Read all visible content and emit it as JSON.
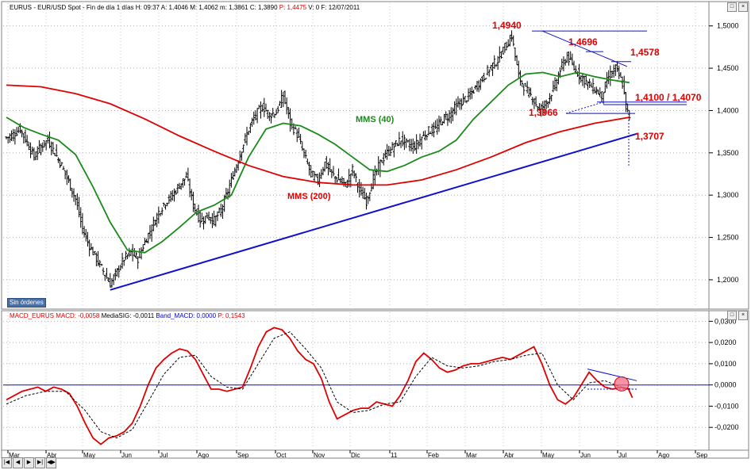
{
  "header": {
    "main": {
      "symbol": "EURUS",
      "desc": "EUR/USD Spot - Fin de día 1 días H: 09:37 A: 1,4046 M: 1,4062 m: 1,3861 C: 1,3890",
      "p": "P: 1,4475",
      "rest": "V: 0 F: 12/07/2011"
    },
    "macd": {
      "name": "MACD_EURUS",
      "macd": "MACD: -0,0058",
      "sig": "MediaSIG: -0,0011",
      "band": "Band_MACD: 0,0000",
      "p": "P: 0,1543"
    }
  },
  "no_orders": "Sin órdenes",
  "nav_buttons": [
    "|◀",
    "◀",
    "▶",
    "▶|",
    "◀▶"
  ],
  "colors": {
    "red": "#e00000",
    "green": "#1a8a1a",
    "blue": "#1010cc",
    "candle": "#000000"
  },
  "chart_data": [
    {
      "type": "candlestick",
      "ylim": [
        1.17,
        1.51
      ],
      "y_ticks": [
        "1,2000",
        "1,2500",
        "1,3000",
        "1,3500",
        "1,4000",
        "1,4500",
        "1,5000"
      ],
      "x_labels": [
        "Mar",
        "Abr",
        "May",
        "Jun",
        "Jul",
        "Ago",
        "Sep",
        "Oct",
        "Nov",
        "Dic",
        "11",
        "Feb",
        "Mar",
        "Abr",
        "May",
        "Jun",
        "Jul",
        "Ago",
        "Sep"
      ],
      "close_series": [
        [
          0,
          1.368
        ],
        [
          4,
          1.372
        ],
        [
          8,
          1.378
        ],
        [
          12,
          1.362
        ],
        [
          16,
          1.345
        ],
        [
          20,
          1.358
        ],
        [
          24,
          1.365
        ],
        [
          28,
          1.35
        ],
        [
          32,
          1.335
        ],
        [
          36,
          1.315
        ],
        [
          40,
          1.295
        ],
        [
          44,
          1.26
        ],
        [
          48,
          1.24
        ],
        [
          52,
          1.225
        ],
        [
          56,
          1.21
        ],
        [
          60,
          1.195
        ],
        [
          64,
          1.21
        ],
        [
          68,
          1.225
        ],
        [
          72,
          1.232
        ],
        [
          76,
          1.225
        ],
        [
          80,
          1.245
        ],
        [
          84,
          1.262
        ],
        [
          88,
          1.28
        ],
        [
          92,
          1.292
        ],
        [
          96,
          1.3
        ],
        [
          100,
          1.312
        ],
        [
          104,
          1.322
        ],
        [
          108,
          1.288
        ],
        [
          112,
          1.27
        ],
        [
          116,
          1.275
        ],
        [
          120,
          1.27
        ],
        [
          124,
          1.282
        ],
        [
          128,
          1.305
        ],
        [
          132,
          1.33
        ],
        [
          136,
          1.355
        ],
        [
          140,
          1.378
        ],
        [
          144,
          1.395
        ],
        [
          148,
          1.405
        ],
        [
          152,
          1.395
        ],
        [
          156,
          1.398
        ],
        [
          160,
          1.418
        ],
        [
          164,
          1.385
        ],
        [
          168,
          1.372
        ],
        [
          172,
          1.348
        ],
        [
          176,
          1.325
        ],
        [
          180,
          1.318
        ],
        [
          184,
          1.338
        ],
        [
          188,
          1.325
        ],
        [
          192,
          1.318
        ],
        [
          196,
          1.312
        ],
        [
          200,
          1.33
        ],
        [
          204,
          1.305
        ],
        [
          208,
          1.293
        ],
        [
          212,
          1.32
        ],
        [
          216,
          1.338
        ],
        [
          220,
          1.35
        ],
        [
          224,
          1.358
        ],
        [
          228,
          1.366
        ],
        [
          232,
          1.36
        ],
        [
          236,
          1.358
        ],
        [
          240,
          1.368
        ],
        [
          244,
          1.376
        ],
        [
          248,
          1.378
        ],
        [
          252,
          1.39
        ],
        [
          256,
          1.395
        ],
        [
          260,
          1.405
        ],
        [
          264,
          1.412
        ],
        [
          268,
          1.418
        ],
        [
          272,
          1.43
        ],
        [
          276,
          1.44
        ],
        [
          280,
          1.452
        ],
        [
          284,
          1.46
        ],
        [
          288,
          1.475
        ],
        [
          292,
          1.488
        ],
        [
          296,
          1.44
        ],
        [
          300,
          1.425
        ],
        [
          304,
          1.415
        ],
        [
          308,
          1.4
        ],
        [
          312,
          1.41
        ],
        [
          316,
          1.425
        ],
        [
          320,
          1.448
        ],
        [
          324,
          1.465
        ],
        [
          328,
          1.45
        ],
        [
          332,
          1.44
        ],
        [
          336,
          1.432
        ],
        [
          340,
          1.425
        ],
        [
          344,
          1.418
        ],
        [
          348,
          1.44
        ],
        [
          352,
          1.45
        ],
        [
          356,
          1.432
        ],
        [
          358,
          1.405
        ],
        [
          360,
          1.389
        ]
      ],
      "series": [
        {
          "name": "MMS (40)",
          "color": "#1a8a1a",
          "values": [
            [
              0,
              1.392
            ],
            [
              10,
              1.38
            ],
            [
              20,
              1.372
            ],
            [
              30,
              1.365
            ],
            [
              40,
              1.348
            ],
            [
              50,
              1.31
            ],
            [
              60,
              1.268
            ],
            [
              70,
              1.235
            ],
            [
              80,
              1.232
            ],
            [
              90,
              1.245
            ],
            [
              100,
              1.262
            ],
            [
              110,
              1.28
            ],
            [
              120,
              1.288
            ],
            [
              130,
              1.3
            ],
            [
              140,
              1.345
            ],
            [
              150,
              1.378
            ],
            [
              160,
              1.385
            ],
            [
              170,
              1.382
            ],
            [
              180,
              1.372
            ],
            [
              190,
              1.36
            ],
            [
              200,
              1.345
            ],
            [
              210,
              1.33
            ],
            [
              220,
              1.328
            ],
            [
              230,
              1.335
            ],
            [
              240,
              1.345
            ],
            [
              250,
              1.352
            ],
            [
              260,
              1.365
            ],
            [
              270,
              1.39
            ],
            [
              280,
              1.41
            ],
            [
              290,
              1.43
            ],
            [
              300,
              1.443
            ],
            [
              310,
              1.445
            ],
            [
              320,
              1.44
            ],
            [
              330,
              1.445
            ],
            [
              340,
              1.44
            ],
            [
              350,
              1.436
            ],
            [
              360,
              1.433
            ]
          ]
        },
        {
          "name": "MMS (200)",
          "color": "#e00000",
          "values": [
            [
              0,
              1.43
            ],
            [
              20,
              1.428
            ],
            [
              40,
              1.42
            ],
            [
              60,
              1.408
            ],
            [
              80,
              1.39
            ],
            [
              100,
              1.37
            ],
            [
              120,
              1.352
            ],
            [
              140,
              1.335
            ],
            [
              160,
              1.322
            ],
            [
              180,
              1.315
            ],
            [
              200,
              1.312
            ],
            [
              220,
              1.312
            ],
            [
              240,
              1.318
            ],
            [
              260,
              1.33
            ],
            [
              280,
              1.345
            ],
            [
              300,
              1.362
            ],
            [
              320,
              1.375
            ],
            [
              340,
              1.385
            ],
            [
              360,
              1.392
            ]
          ]
        },
        {
          "name": "trendline",
          "color": "#1010cc",
          "values": [
            [
              60,
              1.188
            ],
            [
              365,
              1.373
            ]
          ]
        }
      ],
      "annotations": [
        {
          "label": "1,4940",
          "value": 1.494
        },
        {
          "label": "1,4696",
          "value": 1.4696
        },
        {
          "label": "1,4578",
          "value": 1.4578
        },
        {
          "label": "1,4100 / 1,4070",
          "value": 1.41
        },
        {
          "label": "1,3966",
          "value": 1.3966
        },
        {
          "label": "1,3707",
          "value": 1.3707
        }
      ],
      "series_labels": [
        {
          "label": "MMS (40)",
          "color": "#1a8a1a"
        },
        {
          "label": "MMS (200)",
          "color": "#e00000"
        }
      ]
    },
    {
      "type": "line",
      "ylim": [
        -0.03,
        0.032
      ],
      "y_ticks": [
        "0,0300",
        "0,0200",
        "0,0100",
        "0,0000",
        "-0,0100",
        "-0,0200"
      ],
      "series": [
        {
          "name": "MACD",
          "color": "#e00000",
          "values": [
            [
              0,
              -0.007
            ],
            [
              8,
              -0.003
            ],
            [
              16,
              -0.001
            ],
            [
              20,
              -0.003
            ],
            [
              24,
              -0.001
            ],
            [
              28,
              -0.002
            ],
            [
              32,
              -0.004
            ],
            [
              36,
              -0.01
            ],
            [
              40,
              -0.018
            ],
            [
              44,
              -0.025
            ],
            [
              48,
              -0.028
            ],
            [
              52,
              -0.025
            ],
            [
              56,
              -0.024
            ],
            [
              60,
              -0.022
            ],
            [
              64,
              -0.018
            ],
            [
              68,
              -0.01
            ],
            [
              72,
              0.0
            ],
            [
              76,
              0.008
            ],
            [
              80,
              0.012
            ],
            [
              84,
              0.015
            ],
            [
              88,
              0.017
            ],
            [
              92,
              0.016
            ],
            [
              96,
              0.012
            ],
            [
              100,
              0.005
            ],
            [
              104,
              -0.002
            ],
            [
              108,
              -0.002
            ],
            [
              112,
              -0.003
            ],
            [
              116,
              -0.002
            ],
            [
              120,
              -0.001
            ],
            [
              124,
              0.008
            ],
            [
              128,
              0.018
            ],
            [
              132,
              0.025
            ],
            [
              136,
              0.027
            ],
            [
              140,
              0.026
            ],
            [
              144,
              0.022
            ],
            [
              148,
              0.016
            ],
            [
              152,
              0.012
            ],
            [
              156,
              0.01
            ],
            [
              160,
              0.003
            ],
            [
              164,
              -0.008
            ],
            [
              168,
              -0.016
            ],
            [
              172,
              -0.014
            ],
            [
              176,
              -0.012
            ],
            [
              180,
              -0.011
            ],
            [
              184,
              -0.011
            ],
            [
              188,
              -0.008
            ],
            [
              192,
              -0.009
            ],
            [
              196,
              -0.01
            ],
            [
              200,
              -0.005
            ],
            [
              204,
              0.002
            ],
            [
              208,
              0.011
            ],
            [
              212,
              0.015
            ],
            [
              216,
              0.012
            ],
            [
              220,
              0.008
            ],
            [
              224,
              0.006
            ],
            [
              228,
              0.007
            ],
            [
              232,
              0.009
            ],
            [
              236,
              0.01
            ],
            [
              240,
              0.01
            ],
            [
              244,
              0.011
            ],
            [
              248,
              0.012
            ],
            [
              252,
              0.013
            ],
            [
              256,
              0.012
            ],
            [
              260,
              0.014
            ],
            [
              264,
              0.016
            ],
            [
              268,
              0.018
            ],
            [
              272,
              0.01
            ],
            [
              276,
              0.0
            ],
            [
              280,
              -0.007
            ],
            [
              284,
              -0.009
            ],
            [
              288,
              -0.006
            ],
            [
              292,
              0.0
            ],
            [
              296,
              0.006
            ],
            [
              300,
              0.002
            ],
            [
              304,
              -0.001
            ],
            [
              308,
              -0.002
            ],
            [
              312,
              -0.001
            ],
            [
              316,
              -0.002
            ],
            [
              318,
              -0.006
            ]
          ]
        },
        {
          "name": "MediaSIG",
          "color": "#000000",
          "values": [
            [
              0,
              -0.009
            ],
            [
              10,
              -0.005
            ],
            [
              20,
              -0.003
            ],
            [
              30,
              -0.003
            ],
            [
              40,
              -0.012
            ],
            [
              48,
              -0.022
            ],
            [
              56,
              -0.025
            ],
            [
              64,
              -0.021
            ],
            [
              72,
              -0.008
            ],
            [
              80,
              0.005
            ],
            [
              88,
              0.013
            ],
            [
              96,
              0.014
            ],
            [
              104,
              0.004
            ],
            [
              112,
              -0.001
            ],
            [
              120,
              -0.002
            ],
            [
              128,
              0.01
            ],
            [
              136,
              0.022
            ],
            [
              144,
              0.025
            ],
            [
              152,
              0.017
            ],
            [
              160,
              0.008
            ],
            [
              168,
              -0.008
            ],
            [
              176,
              -0.013
            ],
            [
              184,
              -0.012
            ],
            [
              192,
              -0.009
            ],
            [
              200,
              -0.008
            ],
            [
              208,
              0.004
            ],
            [
              216,
              0.013
            ],
            [
              224,
              0.009
            ],
            [
              232,
              0.008
            ],
            [
              240,
              0.009
            ],
            [
              248,
              0.011
            ],
            [
              256,
              0.012
            ],
            [
              264,
              0.014
            ],
            [
              272,
              0.015
            ],
            [
              280,
              0.0
            ],
            [
              288,
              -0.007
            ],
            [
              296,
              0.001
            ],
            [
              304,
              0.002
            ],
            [
              312,
              -0.001
            ],
            [
              318,
              -0.002
            ]
          ]
        },
        {
          "name": "Band_MACD",
          "color": "#1010cc",
          "values": [
            [
              0,
              0.0
            ],
            [
              318,
              0.0
            ]
          ]
        }
      ]
    }
  ]
}
